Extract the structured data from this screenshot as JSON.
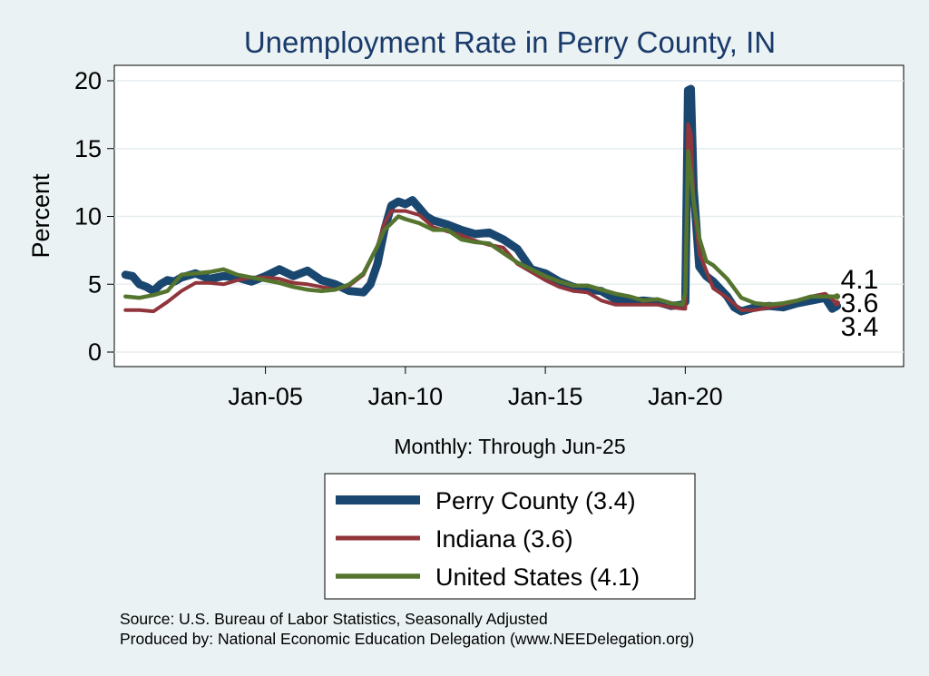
{
  "chart_data": {
    "type": "line",
    "title": "Unemployment Rate in Perry  County, IN",
    "xlabel": "Monthly: Through Jun-25",
    "ylabel": "Percent",
    "ylim": [
      0,
      20
    ],
    "yticks": [
      0,
      5,
      10,
      15,
      20
    ],
    "xticks": [
      {
        "x": 2005,
        "label": "Jan-05"
      },
      {
        "x": 2010,
        "label": "Jan-10"
      },
      {
        "x": 2015,
        "label": "Jan-15"
      },
      {
        "x": 2020,
        "label": "Jan-20"
      }
    ],
    "xlim": [
      1999.6,
      2027.8
    ],
    "grid": true,
    "legend_position": "bottom",
    "series": [
      {
        "name": "Perry  County (3.4)",
        "color": "#1a476f",
        "end_label": "3.4",
        "points": [
          [
            2000.0,
            5.7
          ],
          [
            2000.25,
            5.6
          ],
          [
            2000.5,
            5.0
          ],
          [
            2000.75,
            4.8
          ],
          [
            2001.0,
            4.5
          ],
          [
            2001.25,
            5.0
          ],
          [
            2001.5,
            5.3
          ],
          [
            2001.75,
            5.2
          ],
          [
            2002.0,
            5.5
          ],
          [
            2002.5,
            5.8
          ],
          [
            2003.0,
            5.4
          ],
          [
            2003.5,
            5.6
          ],
          [
            2004.0,
            5.5
          ],
          [
            2004.5,
            5.2
          ],
          [
            2005.0,
            5.6
          ],
          [
            2005.5,
            6.1
          ],
          [
            2006.0,
            5.6
          ],
          [
            2006.5,
            6.0
          ],
          [
            2007.0,
            5.3
          ],
          [
            2007.5,
            5.0
          ],
          [
            2008.0,
            4.5
          ],
          [
            2008.5,
            4.4
          ],
          [
            2008.75,
            5.0
          ],
          [
            2009.0,
            6.5
          ],
          [
            2009.25,
            9.0
          ],
          [
            2009.5,
            10.8
          ],
          [
            2009.75,
            11.1
          ],
          [
            2010.0,
            10.9
          ],
          [
            2010.25,
            11.2
          ],
          [
            2010.5,
            10.6
          ],
          [
            2010.75,
            10.0
          ],
          [
            2011.0,
            9.7
          ],
          [
            2011.5,
            9.4
          ],
          [
            2012.0,
            9.0
          ],
          [
            2012.5,
            8.7
          ],
          [
            2013.0,
            8.8
          ],
          [
            2013.5,
            8.3
          ],
          [
            2014.0,
            7.6
          ],
          [
            2014.5,
            6.1
          ],
          [
            2015.0,
            5.8
          ],
          [
            2015.5,
            5.2
          ],
          [
            2016.0,
            4.8
          ],
          [
            2016.5,
            4.6
          ],
          [
            2017.0,
            4.5
          ],
          [
            2017.5,
            3.9
          ],
          [
            2018.0,
            3.7
          ],
          [
            2018.5,
            3.8
          ],
          [
            2019.0,
            3.7
          ],
          [
            2019.5,
            3.4
          ],
          [
            2019.9,
            3.5
          ],
          [
            2020.0,
            3.7
          ],
          [
            2020.1,
            19.3
          ],
          [
            2020.2,
            19.4
          ],
          [
            2020.3,
            12.0
          ],
          [
            2020.5,
            6.3
          ],
          [
            2020.75,
            5.6
          ],
          [
            2021.0,
            5.2
          ],
          [
            2021.5,
            4.1
          ],
          [
            2021.75,
            3.3
          ],
          [
            2022.0,
            3.0
          ],
          [
            2022.5,
            3.3
          ],
          [
            2023.0,
            3.4
          ],
          [
            2023.5,
            3.3
          ],
          [
            2024.0,
            3.6
          ],
          [
            2024.5,
            3.8
          ],
          [
            2025.0,
            4.0
          ],
          [
            2025.25,
            3.2
          ],
          [
            2025.42,
            3.4
          ]
        ]
      },
      {
        "name": "Indiana (3.6)",
        "color": "#90353b",
        "end_label": "3.6",
        "points": [
          [
            2000.0,
            3.1
          ],
          [
            2000.5,
            3.1
          ],
          [
            2001.0,
            3.0
          ],
          [
            2001.5,
            3.7
          ],
          [
            2002.0,
            4.5
          ],
          [
            2002.5,
            5.1
          ],
          [
            2003.0,
            5.1
          ],
          [
            2003.5,
            5.0
          ],
          [
            2004.0,
            5.3
          ],
          [
            2004.5,
            5.5
          ],
          [
            2005.0,
            5.5
          ],
          [
            2005.5,
            5.4
          ],
          [
            2006.0,
            5.1
          ],
          [
            2006.5,
            5.0
          ],
          [
            2007.0,
            4.8
          ],
          [
            2007.5,
            4.6
          ],
          [
            2008.0,
            4.9
          ],
          [
            2008.5,
            5.7
          ],
          [
            2009.0,
            7.8
          ],
          [
            2009.25,
            9.5
          ],
          [
            2009.5,
            10.4
          ],
          [
            2010.0,
            10.4
          ],
          [
            2010.5,
            10.1
          ],
          [
            2011.0,
            9.2
          ],
          [
            2011.5,
            8.9
          ],
          [
            2012.0,
            8.6
          ],
          [
            2012.5,
            8.2
          ],
          [
            2013.0,
            7.9
          ],
          [
            2013.5,
            7.7
          ],
          [
            2014.0,
            6.5
          ],
          [
            2014.5,
            5.9
          ],
          [
            2015.0,
            5.3
          ],
          [
            2015.5,
            4.8
          ],
          [
            2016.0,
            4.5
          ],
          [
            2016.5,
            4.4
          ],
          [
            2017.0,
            3.8
          ],
          [
            2017.5,
            3.5
          ],
          [
            2018.0,
            3.5
          ],
          [
            2018.5,
            3.5
          ],
          [
            2019.0,
            3.5
          ],
          [
            2019.5,
            3.3
          ],
          [
            2019.9,
            3.2
          ],
          [
            2020.0,
            3.2
          ],
          [
            2020.1,
            16.8
          ],
          [
            2020.2,
            16.1
          ],
          [
            2020.3,
            11.0
          ],
          [
            2020.5,
            7.3
          ],
          [
            2020.75,
            6.0
          ],
          [
            2021.0,
            4.7
          ],
          [
            2021.5,
            4.0
          ],
          [
            2022.0,
            3.1
          ],
          [
            2022.5,
            3.1
          ],
          [
            2023.0,
            3.3
          ],
          [
            2023.5,
            3.5
          ],
          [
            2024.0,
            3.8
          ],
          [
            2024.5,
            4.1
          ],
          [
            2025.0,
            4.3
          ],
          [
            2025.42,
            3.6
          ]
        ]
      },
      {
        "name": "United States (4.1)",
        "color": "#55752f",
        "end_label": "4.1",
        "points": [
          [
            2000.0,
            4.1
          ],
          [
            2000.5,
            4.0
          ],
          [
            2001.0,
            4.2
          ],
          [
            2001.5,
            4.5
          ],
          [
            2002.0,
            5.7
          ],
          [
            2002.5,
            5.8
          ],
          [
            2003.0,
            5.9
          ],
          [
            2003.5,
            6.1
          ],
          [
            2004.0,
            5.7
          ],
          [
            2004.5,
            5.5
          ],
          [
            2005.0,
            5.3
          ],
          [
            2005.5,
            5.1
          ],
          [
            2006.0,
            4.8
          ],
          [
            2006.5,
            4.6
          ],
          [
            2007.0,
            4.5
          ],
          [
            2007.5,
            4.6
          ],
          [
            2008.0,
            5.0
          ],
          [
            2008.5,
            5.8
          ],
          [
            2009.0,
            7.8
          ],
          [
            2009.25,
            9.0
          ],
          [
            2009.5,
            9.5
          ],
          [
            2009.75,
            10.0
          ],
          [
            2010.0,
            9.8
          ],
          [
            2010.5,
            9.5
          ],
          [
            2011.0,
            9.0
          ],
          [
            2011.5,
            9.0
          ],
          [
            2012.0,
            8.3
          ],
          [
            2012.5,
            8.1
          ],
          [
            2013.0,
            8.0
          ],
          [
            2013.5,
            7.3
          ],
          [
            2014.0,
            6.6
          ],
          [
            2014.5,
            6.1
          ],
          [
            2015.0,
            5.6
          ],
          [
            2015.5,
            5.2
          ],
          [
            2016.0,
            4.9
          ],
          [
            2016.5,
            4.9
          ],
          [
            2017.0,
            4.6
          ],
          [
            2017.5,
            4.3
          ],
          [
            2018.0,
            4.1
          ],
          [
            2018.5,
            3.8
          ],
          [
            2019.0,
            3.9
          ],
          [
            2019.5,
            3.6
          ],
          [
            2019.9,
            3.5
          ],
          [
            2020.0,
            4.4
          ],
          [
            2020.1,
            14.8
          ],
          [
            2020.2,
            13.2
          ],
          [
            2020.3,
            11.1
          ],
          [
            2020.5,
            8.4
          ],
          [
            2020.75,
            6.7
          ],
          [
            2021.0,
            6.4
          ],
          [
            2021.5,
            5.4
          ],
          [
            2022.0,
            4.0
          ],
          [
            2022.5,
            3.6
          ],
          [
            2023.0,
            3.5
          ],
          [
            2023.5,
            3.6
          ],
          [
            2024.0,
            3.8
          ],
          [
            2024.5,
            4.1
          ],
          [
            2025.0,
            4.1
          ],
          [
            2025.42,
            4.1
          ]
        ]
      }
    ]
  },
  "source_lines": [
    "Source: U.S. Bureau of Labor Statistics, Seasonally Adjusted",
    "Produced by: National Economic Education Delegation (www.NEEDelegation.org)"
  ]
}
